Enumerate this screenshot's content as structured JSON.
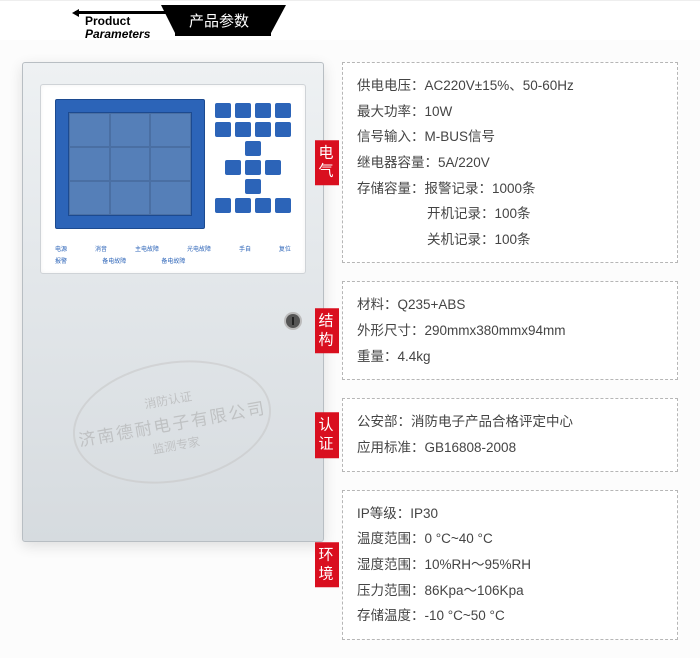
{
  "header": {
    "en1": "Product",
    "en2": "Parameters",
    "ch": "产品参数"
  },
  "sections": [
    {
      "tag": "电气",
      "rows": [
        {
          "k": "供电电压：",
          "v": "AC220V±15%、50-60Hz"
        },
        {
          "k": "最大功率：",
          "v": "10W"
        },
        {
          "k": "信号输入：",
          "v": "M-BUS信号"
        },
        {
          "k": "继电器容量：",
          "v": "5A/220V"
        },
        {
          "k": "存储容量：",
          "v": "报警记录：1000条"
        },
        {
          "k": "",
          "v": "开机记录：100条",
          "indent": true
        },
        {
          "k": "",
          "v": "关机记录：100条",
          "indent": true
        }
      ]
    },
    {
      "tag": "结构",
      "rows": [
        {
          "k": "材料：",
          "v": "Q235+ABS"
        },
        {
          "k": "外形尺寸：",
          "v": "290mmx380mmx94mm"
        },
        {
          "k": "重量：",
          "v": "4.4kg"
        }
      ]
    },
    {
      "tag": "认证",
      "rows": [
        {
          "k": "公安部：",
          "v": "消防电子产品合格评定中心"
        },
        {
          "k": "应用标准：",
          "v": "GB16808-2008"
        }
      ]
    },
    {
      "tag": "环境",
      "rows": [
        {
          "k": "IP等级：",
          "v": "IP30"
        },
        {
          "k": "温度范围：",
          "v": "0 °C~40 °C"
        },
        {
          "k": "湿度范围：",
          "v": "10%RH～95%RH"
        },
        {
          "k": "压力范围：",
          "v": "86Kpa～106Kpa"
        },
        {
          "k": "存储温度：",
          "v": "-10 °C~50 °C"
        }
      ]
    }
  ],
  "stamp": {
    "l1": "消防认证",
    "l2": "济南德耐电子有限公司",
    "l3": "监测专家"
  },
  "device_labels": {
    "r1": [
      "电源",
      "消音",
      "主电故障",
      "光电故障",
      "手自",
      "复位"
    ],
    "r2": [
      "报警",
      "备电故障",
      "备电故障",
      "",
      "",
      ""
    ]
  },
  "colors": {
    "accent": "#d90f1f",
    "panel": "#2c64b8",
    "border": "#b6b6b6",
    "text": "#444444",
    "bg": "#fcfcfc"
  }
}
